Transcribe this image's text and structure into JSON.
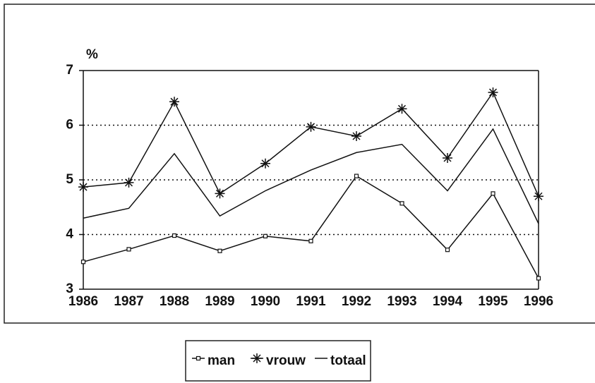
{
  "chart_data": {
    "type": "line",
    "y_label": "%",
    "categories": [
      "1986",
      "1987",
      "1988",
      "1989",
      "1990",
      "1991",
      "1992",
      "1993",
      "1994",
      "1995",
      "1996"
    ],
    "series": [
      {
        "name": "man",
        "color": "#111111",
        "marker": "square",
        "values": [
          3.5,
          3.73,
          3.98,
          3.7,
          3.97,
          3.88,
          5.07,
          4.57,
          3.72,
          4.75,
          3.2
        ]
      },
      {
        "name": "vrouw",
        "color": "#111111",
        "marker": "asterisk",
        "values": [
          4.87,
          4.95,
          6.43,
          4.75,
          5.3,
          5.97,
          5.8,
          6.3,
          5.4,
          6.6,
          4.7
        ]
      },
      {
        "name": "totaal",
        "color": "#111111",
        "marker": "none",
        "values": [
          4.3,
          4.48,
          5.48,
          4.34,
          4.8,
          5.18,
          5.5,
          5.65,
          4.8,
          5.93,
          4.2
        ]
      }
    ],
    "ylim": [
      3,
      7
    ],
    "yticks": [
      3,
      4,
      5,
      6,
      7
    ],
    "grid": true,
    "legend": "bottom"
  }
}
